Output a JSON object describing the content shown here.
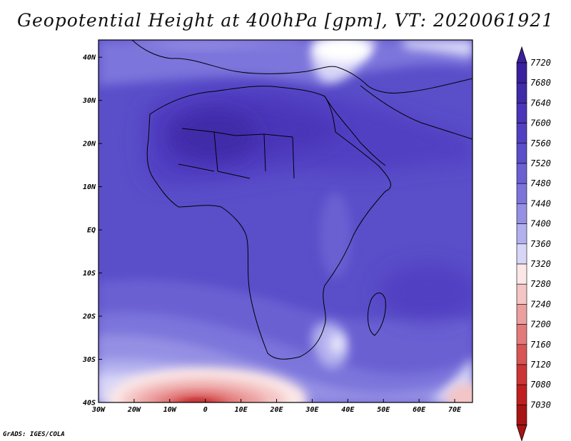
{
  "title": "Geopotential Height at 400hPa [gpm], VT: 2020061921",
  "footer": "GrADS: IGES/COLA",
  "map": {
    "lat_labels": [
      "40N",
      "30N",
      "20N",
      "10N",
      "EQ",
      "10S",
      "20S",
      "30S",
      "40S"
    ],
    "lon_labels": [
      "30W",
      "20W",
      "10W",
      "0",
      "10E",
      "20E",
      "30E",
      "40E",
      "50E",
      "60E",
      "70E"
    ],
    "lat_range": [
      -40,
      44
    ],
    "lon_range": [
      -30,
      75
    ]
  },
  "colorbar": {
    "levels": [
      "7720",
      "7680",
      "7640",
      "7600",
      "7560",
      "7520",
      "7480",
      "7440",
      "7400",
      "7360",
      "7320",
      "7280",
      "7240",
      "7200",
      "7160",
      "7120",
      "7080",
      "7030"
    ],
    "colors": [
      "#3a1f9e",
      "#3f2aa8",
      "#4a34b8",
      "#5140c2",
      "#5a4ec9",
      "#6a60d2",
      "#7c74db",
      "#9590e4",
      "#b3b0ee",
      "#d8d6f7",
      "#fbe7e7",
      "#f4c5c5",
      "#ec9f9f",
      "#e27a7a",
      "#d85555",
      "#cc3535",
      "#c01f1f",
      "#a81414"
    ]
  }
}
